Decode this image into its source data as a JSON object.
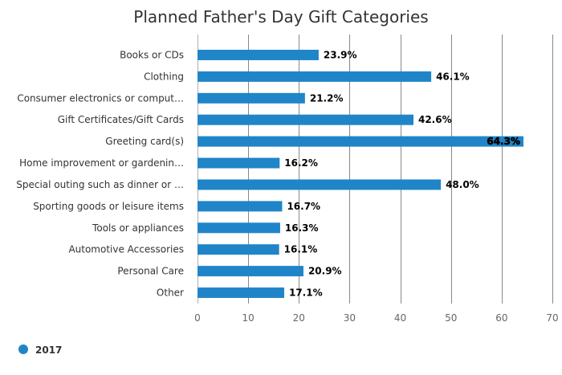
{
  "chart_data": {
    "type": "bar",
    "orientation": "horizontal",
    "title": "Planned Father's Day Gift Categories",
    "categories": [
      "Books or CDs",
      "Clothing",
      "Consumer electronics or comput…",
      "Gift Certificates/Gift Cards",
      "Greeting card(s)",
      "Home improvement or gardenin…",
      "Special outing such as dinner or …",
      "Sporting goods or leisure items",
      "Tools or appliances",
      "Automotive Accessories",
      "Personal Care",
      "Other"
    ],
    "series": [
      {
        "name": "2017",
        "color": "#1f85c8",
        "values": [
          23.9,
          46.1,
          21.2,
          42.6,
          64.3,
          16.2,
          48.0,
          16.7,
          16.3,
          16.1,
          20.9,
          17.1
        ],
        "labels": [
          "23.9%",
          "46.1%",
          "21.2%",
          "42.6%",
          "64.3%",
          "16.2%",
          "48.0%",
          "16.7%",
          "16.3%",
          "16.1%",
          "20.9%",
          "17.1%"
        ]
      }
    ],
    "xlim": [
      0,
      70
    ],
    "ticks": [
      0,
      10,
      20,
      30,
      40,
      50,
      60,
      70
    ],
    "grid": true,
    "legend_position": "bottom-left"
  }
}
